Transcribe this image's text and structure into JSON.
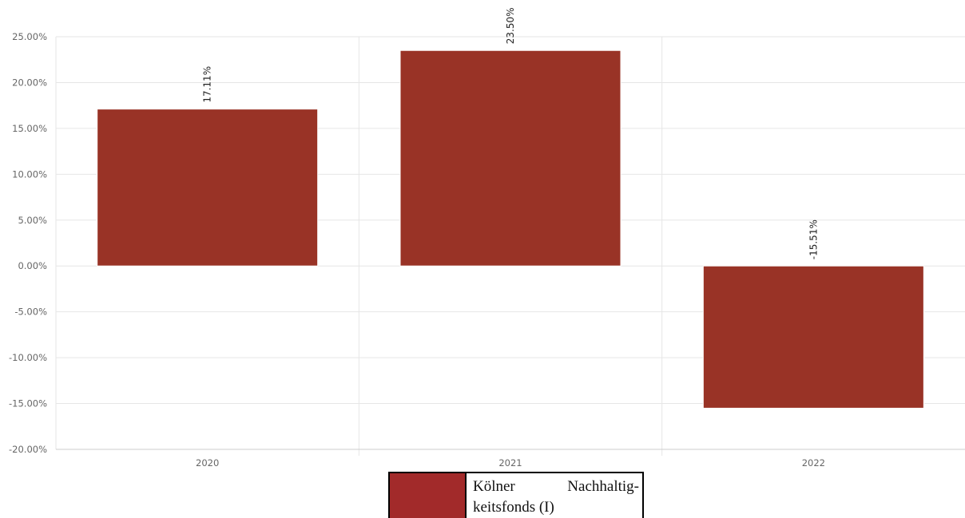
{
  "chart_data": {
    "type": "bar",
    "categories": [
      "2020",
      "2021",
      "2022"
    ],
    "series": [
      {
        "name": "Kölner Nachhaltig- keitsfonds (I)",
        "values": [
          17.11,
          23.5,
          -15.51
        ]
      }
    ],
    "data_labels": [
      "17.11%",
      "23.50%",
      "-15.51%"
    ],
    "yticks": [
      "25.00%",
      "20.00%",
      "15.00%",
      "10.00%",
      "5.00%",
      "0.00%",
      "-5.00%",
      "-10.00%",
      "-15.00%",
      "-20.00%"
    ],
    "ylim": [
      -20,
      25
    ],
    "grid": true,
    "legend_position": "bottom-center"
  },
  "colors": {
    "bar": "#993326",
    "legend_swatch": "#a22a2a",
    "grid": "#e6e6e6",
    "axis_text": "#666666",
    "label_text": "#222222"
  }
}
